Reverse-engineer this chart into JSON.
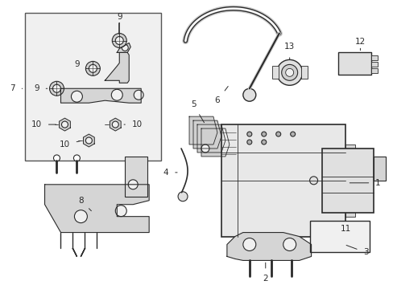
{
  "bg_color": "#ffffff",
  "line_color": "#2a2a2a",
  "inset_bg": "#f0f0f0",
  "inset_border": "#555555",
  "parts_color": "#cccccc",
  "label_fontsize": 7.5,
  "figsize": [
    4.89,
    3.6
  ],
  "dpi": 100
}
